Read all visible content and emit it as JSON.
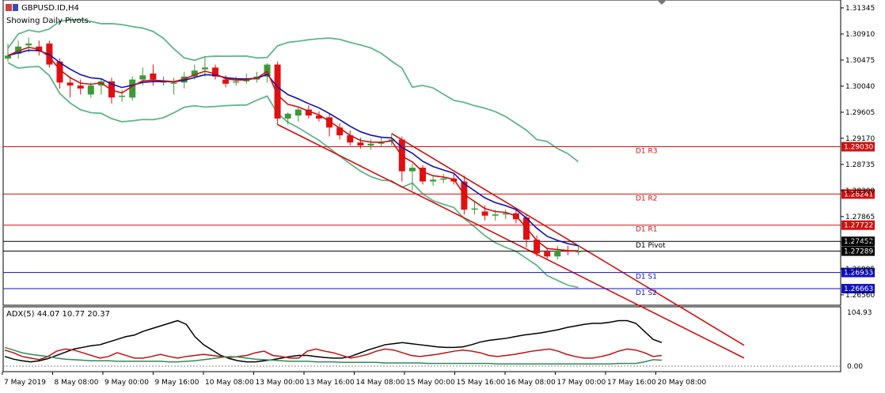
{
  "header": {
    "symbol_title": "GBPUSD.ID,H4",
    "subtitle": "Showing Daily Pivots."
  },
  "indicator": {
    "title": "ADX(5) 44.07 10.77 20.37",
    "axis_max": "104.93",
    "axis_min": "0.00"
  },
  "colors": {
    "bull": "#3a9a3a",
    "bear": "#e01010",
    "bollinger": "#5fb58a",
    "ma_fast": "#d01010",
    "ma_slow": "#1010b0",
    "channel": "#d01010",
    "resistance": "#d01010",
    "support": "#1010c0",
    "pivot": "#000000",
    "adx_main": "#000000",
    "adx_minus": "#c01010",
    "adx_plus": "#2e8b57"
  },
  "chart_data": [
    {
      "type": "candlestick",
      "title": "GBPUSD.ID,H4",
      "ylim": [
        1.264,
        1.3145
      ],
      "y_ticks": [
        "1.31345",
        "1.30910",
        "1.30475",
        "1.30040",
        "1.29605",
        "1.29170",
        "1.28735",
        "1.28300",
        "1.27865",
        "1.27430",
        "1.26995",
        "1.26560"
      ],
      "x_ticks": [
        "7 May 2019",
        "8 May 08:00",
        "9 May 00:00",
        "9 May 16:00",
        "10 May 08:00",
        "13 May 00:00",
        "13 May 16:00",
        "14 May 08:00",
        "15 May 00:00",
        "15 May 16:00",
        "16 May 08:00",
        "17 May 00:00",
        "17 May 16:00",
        "20 May 08:00"
      ],
      "candles": [
        {
          "o": 1.305,
          "h": 1.3075,
          "l": 1.3045,
          "c": 1.3055
        },
        {
          "o": 1.3058,
          "h": 1.308,
          "l": 1.305,
          "c": 1.307
        },
        {
          "o": 1.3072,
          "h": 1.3085,
          "l": 1.306,
          "c": 1.3075
        },
        {
          "o": 1.307,
          "h": 1.308,
          "l": 1.3055,
          "c": 1.3062
        },
        {
          "o": 1.3075,
          "h": 1.308,
          "l": 1.3035,
          "c": 1.304
        },
        {
          "o": 1.3045,
          "h": 1.305,
          "l": 1.3,
          "c": 1.301
        },
        {
          "o": 1.301,
          "h": 1.302,
          "l": 1.2985,
          "c": 1.3005
        },
        {
          "o": 1.3005,
          "h": 1.3015,
          "l": 1.299,
          "c": 1.3
        },
        {
          "o": 1.299,
          "h": 1.301,
          "l": 1.2985,
          "c": 1.3005
        },
        {
          "o": 1.3005,
          "h": 1.3015,
          "l": 1.299,
          "c": 1.3012
        },
        {
          "o": 1.3012,
          "h": 1.3018,
          "l": 1.2975,
          "c": 1.2985
        },
        {
          "o": 1.2988,
          "h": 1.2998,
          "l": 1.2978,
          "c": 1.2988
        },
        {
          "o": 1.2985,
          "h": 1.302,
          "l": 1.298,
          "c": 1.3015
        },
        {
          "o": 1.3015,
          "h": 1.3035,
          "l": 1.3005,
          "c": 1.3022
        },
        {
          "o": 1.3025,
          "h": 1.304,
          "l": 1.3005,
          "c": 1.3015
        },
        {
          "o": 1.3012,
          "h": 1.302,
          "l": 1.3005,
          "c": 1.3012
        },
        {
          "o": 1.301,
          "h": 1.3018,
          "l": 1.299,
          "c": 1.301
        },
        {
          "o": 1.301,
          "h": 1.3028,
          "l": 1.3,
          "c": 1.302
        },
        {
          "o": 1.302,
          "h": 1.304,
          "l": 1.3015,
          "c": 1.303
        },
        {
          "o": 1.3032,
          "h": 1.3052,
          "l": 1.302,
          "c": 1.3035
        },
        {
          "o": 1.3035,
          "h": 1.304,
          "l": 1.3015,
          "c": 1.302
        },
        {
          "o": 1.3015,
          "h": 1.3022,
          "l": 1.3002,
          "c": 1.3008
        },
        {
          "o": 1.301,
          "h": 1.302,
          "l": 1.3005,
          "c": 1.3012
        },
        {
          "o": 1.3012,
          "h": 1.3025,
          "l": 1.3008,
          "c": 1.3015
        },
        {
          "o": 1.3015,
          "h": 1.3028,
          "l": 1.301,
          "c": 1.302
        },
        {
          "o": 1.302,
          "h": 1.3042,
          "l": 1.301,
          "c": 1.304
        },
        {
          "o": 1.304,
          "h": 1.3045,
          "l": 1.294,
          "c": 1.295
        },
        {
          "o": 1.295,
          "h": 1.296,
          "l": 1.294,
          "c": 1.2958
        },
        {
          "o": 1.2955,
          "h": 1.2968,
          "l": 1.2945,
          "c": 1.2965
        },
        {
          "o": 1.2965,
          "h": 1.2972,
          "l": 1.295,
          "c": 1.2955
        },
        {
          "o": 1.2955,
          "h": 1.2962,
          "l": 1.2945,
          "c": 1.295
        },
        {
          "o": 1.2952,
          "h": 1.2958,
          "l": 1.292,
          "c": 1.2935
        },
        {
          "o": 1.2935,
          "h": 1.2942,
          "l": 1.2915,
          "c": 1.2922
        },
        {
          "o": 1.2922,
          "h": 1.293,
          "l": 1.2905,
          "c": 1.291
        },
        {
          "o": 1.291,
          "h": 1.2918,
          "l": 1.29,
          "c": 1.2905
        },
        {
          "o": 1.2905,
          "h": 1.2915,
          "l": 1.2898,
          "c": 1.2908
        },
        {
          "o": 1.2908,
          "h": 1.2918,
          "l": 1.2903,
          "c": 1.291
        },
        {
          "o": 1.2912,
          "h": 1.2925,
          "l": 1.2905,
          "c": 1.2915
        },
        {
          "o": 1.2915,
          "h": 1.292,
          "l": 1.2845,
          "c": 1.2862
        },
        {
          "o": 1.2862,
          "h": 1.2875,
          "l": 1.283,
          "c": 1.2868
        },
        {
          "o": 1.2868,
          "h": 1.2872,
          "l": 1.284,
          "c": 1.2845
        },
        {
          "o": 1.2845,
          "h": 1.2855,
          "l": 1.2838,
          "c": 1.2848
        },
        {
          "o": 1.2848,
          "h": 1.2858,
          "l": 1.2842,
          "c": 1.285
        },
        {
          "o": 1.285,
          "h": 1.2858,
          "l": 1.284,
          "c": 1.2845
        },
        {
          "o": 1.2845,
          "h": 1.2855,
          "l": 1.279,
          "c": 1.2798
        },
        {
          "o": 1.2798,
          "h": 1.2812,
          "l": 1.279,
          "c": 1.28
        },
        {
          "o": 1.2795,
          "h": 1.2805,
          "l": 1.278,
          "c": 1.2788
        },
        {
          "o": 1.2788,
          "h": 1.2798,
          "l": 1.278,
          "c": 1.279
        },
        {
          "o": 1.279,
          "h": 1.2798,
          "l": 1.2782,
          "c": 1.2792
        },
        {
          "o": 1.2792,
          "h": 1.2798,
          "l": 1.2775,
          "c": 1.2782
        },
        {
          "o": 1.2785,
          "h": 1.279,
          "l": 1.2735,
          "c": 1.2748
        },
        {
          "o": 1.2748,
          "h": 1.2755,
          "l": 1.272,
          "c": 1.2725
        },
        {
          "o": 1.2728,
          "h": 1.2735,
          "l": 1.2715,
          "c": 1.272
        },
        {
          "o": 1.272,
          "h": 1.2738,
          "l": 1.2715,
          "c": 1.273
        },
        {
          "o": 1.273,
          "h": 1.2738,
          "l": 1.2722,
          "c": 1.2728
        },
        {
          "o": 1.2728,
          "h": 1.2738,
          "l": 1.2722,
          "c": 1.2729
        }
      ],
      "pivots": [
        {
          "label": "D1 R3",
          "value": 1.2903,
          "tag": "1.29030",
          "color": "#d01010"
        },
        {
          "label": "D1 R2",
          "value": 1.28241,
          "tag": "1.28241",
          "color": "#d01010"
        },
        {
          "label": "D1 R1",
          "value": 1.27722,
          "tag": "1.27722",
          "color": "#d01010"
        },
        {
          "label": "D1 Pivot",
          "value": 1.27452,
          "tag": "1.27452",
          "color": "#000000"
        },
        {
          "label": "",
          "value": 1.27289,
          "tag": "1.27289",
          "color": "#000000"
        },
        {
          "label": "D1 S1",
          "value": 1.26933,
          "tag": "1.26933",
          "color": "#1010c0"
        },
        {
          "label": "D1 S2",
          "value": 1.26663,
          "tag": "1.26663",
          "color": "#1010c0"
        }
      ]
    },
    {
      "type": "line",
      "title": "ADX(5) 44.07 10.77 20.37",
      "ylim": [
        0,
        104.93
      ],
      "series": [
        {
          "values": [
            18,
            13,
            10,
            8,
            10,
            14,
            20,
            26,
            32,
            35,
            38,
            40,
            45,
            50,
            55,
            58,
            65,
            70,
            75,
            80,
            85,
            78,
            55,
            40,
            30,
            20,
            14,
            10,
            8,
            8,
            10,
            12,
            15,
            18,
            20,
            20,
            18,
            16,
            15,
            15,
            18,
            24,
            30,
            35,
            40,
            42,
            44,
            42,
            40,
            38,
            36,
            35,
            35,
            36,
            40,
            45,
            48,
            50,
            52,
            55,
            58,
            60,
            62,
            65,
            68,
            72,
            75,
            78,
            80,
            80,
            82,
            85,
            85,
            80,
            65,
            50,
            44
          ]
        },
        {
          "values": [
            30,
            25,
            18,
            15,
            12,
            18,
            28,
            32,
            30,
            25,
            20,
            15,
            18,
            25,
            20,
            15,
            15,
            18,
            22,
            18,
            15,
            18,
            20,
            22,
            20,
            18,
            16,
            18,
            20,
            25,
            28,
            20,
            18,
            15,
            15,
            28,
            32,
            28,
            25,
            20,
            15,
            18,
            22,
            28,
            32,
            30,
            25,
            20,
            18,
            20,
            22,
            25,
            28,
            30,
            28,
            25,
            20,
            18,
            20,
            22,
            25,
            28,
            30,
            32,
            28,
            22,
            18,
            15,
            15,
            18,
            22,
            28,
            32,
            30,
            25,
            18,
            20
          ]
        },
        {
          "values": [
            35,
            30,
            25,
            22,
            20,
            18,
            15,
            13,
            12,
            11,
            10,
            10,
            10,
            9,
            9,
            9,
            9,
            9,
            9,
            8,
            8,
            9,
            10,
            12,
            14,
            16,
            18,
            17,
            15,
            13,
            12,
            11,
            10,
            9,
            9,
            9,
            8,
            8,
            8,
            7,
            7,
            7,
            7,
            7,
            6,
            6,
            6,
            6,
            6,
            5,
            5,
            5,
            5,
            5,
            5,
            5,
            5,
            4,
            4,
            4,
            4,
            4,
            4,
            4,
            4,
            4,
            4,
            4,
            4,
            4,
            4,
            5,
            5,
            5,
            8,
            12,
            11
          ]
        }
      ]
    }
  ]
}
